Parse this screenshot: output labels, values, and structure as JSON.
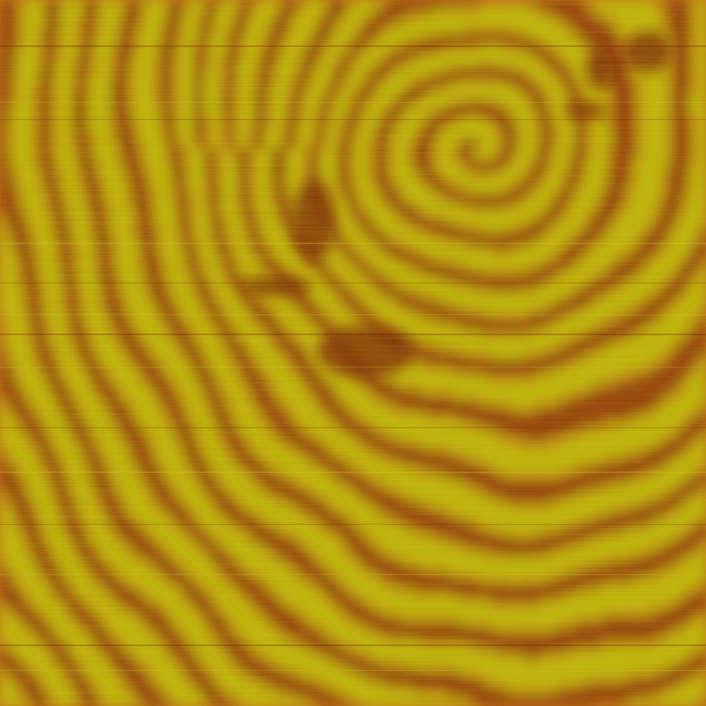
{
  "image": {
    "palette": {
      "dark": "#7a1c04",
      "mid": "#b8620e",
      "light": "#b8b404"
    },
    "regions": [
      {
        "name": "spiral-core",
        "description_color": "#b8b404"
      },
      {
        "name": "dark-domain-center",
        "description_color": "#6a1202"
      },
      {
        "name": "banded-background",
        "description_color": "#b8620e"
      }
    ]
  }
}
